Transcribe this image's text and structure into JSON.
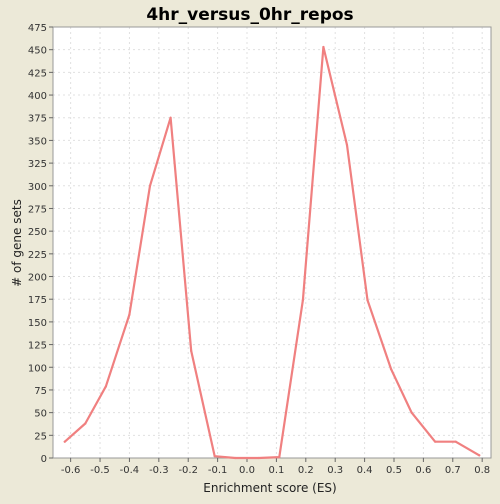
{
  "chart_data": {
    "type": "line",
    "title": "4hr_versus_0hr_repos",
    "xlabel": "Enrichment score (ES)",
    "ylabel": "# of gene sets",
    "xlim": [
      -0.66,
      0.83
    ],
    "ylim": [
      0,
      475
    ],
    "x_ticks": [
      -0.6,
      -0.5,
      -0.4,
      -0.3,
      -0.2,
      -0.1,
      0.0,
      0.1,
      0.2,
      0.3,
      0.4,
      0.5,
      0.6,
      0.7,
      0.8
    ],
    "x_tick_labels": [
      "-0.6",
      "-0.5",
      "-0.4",
      "-0.3",
      "-0.2",
      "-0.1",
      "0.0",
      "0.1",
      "0.2",
      "0.3",
      "0.4",
      "0.5",
      "0.6",
      "0.7",
      "0.8"
    ],
    "y_ticks": [
      0,
      25,
      50,
      75,
      100,
      125,
      150,
      175,
      200,
      225,
      250,
      275,
      300,
      325,
      350,
      375,
      400,
      425,
      450,
      475
    ],
    "y_tick_labels": [
      "0",
      "25",
      "50",
      "75",
      "100",
      "125",
      "150",
      "175",
      "200",
      "225",
      "250",
      "275",
      "300",
      "325",
      "350",
      "375",
      "400",
      "425",
      "450",
      "475"
    ],
    "grid": true,
    "legend": "none",
    "line_color": "#f08080",
    "plot_background": "#ffffff",
    "page_background": "#ece9d8",
    "grid_color": "#e0e0e0",
    "series": [
      {
        "x": [
          -0.62,
          -0.55,
          -0.48,
          -0.4,
          -0.33,
          -0.26,
          -0.19,
          -0.11,
          -0.04,
          0.04,
          0.11,
          0.19,
          0.26,
          0.34,
          0.41,
          0.49,
          0.56,
          0.64,
          0.71,
          0.79
        ],
        "values": [
          18,
          38,
          79,
          158,
          300,
          375,
          118,
          2,
          0,
          0,
          1,
          174,
          453,
          345,
          174,
          98,
          50,
          18,
          18,
          3
        ]
      }
    ]
  }
}
